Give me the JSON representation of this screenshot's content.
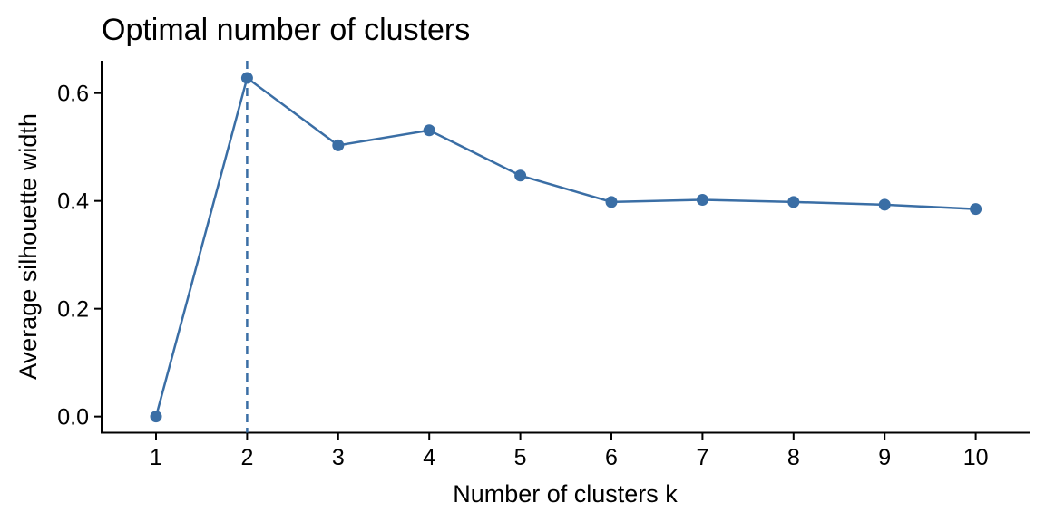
{
  "chart_data": {
    "type": "line",
    "title": "Optimal number of clusters",
    "xlabel": "Number of clusters k",
    "ylabel": "Average silhouette width",
    "categories": [
      "1",
      "2",
      "3",
      "4",
      "5",
      "6",
      "7",
      "8",
      "9",
      "10"
    ],
    "series": [
      {
        "values": [
          0.0,
          0.628,
          0.503,
          0.531,
          0.447,
          0.398,
          0.402,
          0.398,
          0.393,
          0.385
        ]
      }
    ],
    "yticks": [
      "0.0",
      "0.2",
      "0.4",
      "0.6"
    ],
    "ylim": [
      -0.03,
      0.66
    ],
    "optimal_k": 2,
    "grid": false,
    "colors": {
      "series": "#3a6ea5",
      "axis": "#000000"
    }
  }
}
